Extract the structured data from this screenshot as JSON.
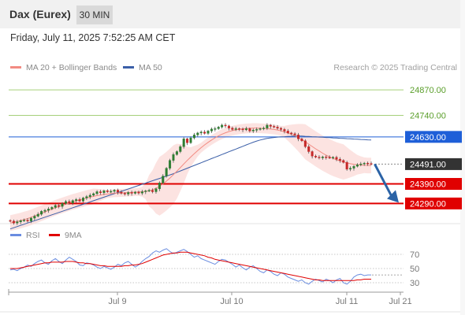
{
  "header": {
    "instrument": "Dax (Eurex)",
    "interval": "30 MIN"
  },
  "datetime": "Friday, July 11, 2025 7:52:25 AM CET",
  "legend": {
    "ma20_label": "MA 20 + Bollinger Bands",
    "ma50_label": "MA 50",
    "rsi_label": "RSI",
    "rsi_ma_label": "9MA"
  },
  "copyright": "Research © 2025 Trading Central",
  "colors": {
    "ma20": "#f28b82",
    "bollinger_band": "#fbd9d7",
    "ma50": "#3b5fa8",
    "resistance_green": "#a6d07a",
    "pivot_blue": "#1e5fd8",
    "support_red": "#e00000",
    "last_price": "#333333",
    "rsi": "#6a8de0",
    "rsi_ma": "#e00000",
    "arrow": "#2b63a6",
    "candle_up": "#2e7d32",
    "candle_down": "#c62828"
  },
  "chart_data": {
    "type": "candlestick",
    "ylim": [
      24195,
      24935
    ],
    "x_ticks": [
      "Jul 9",
      "Jul 10",
      "Jul 11",
      "Jul 21"
    ],
    "levels": [
      {
        "value": 24870.0,
        "label": "24870.00",
        "kind": "resistance"
      },
      {
        "value": 24740.0,
        "label": "24740.00",
        "kind": "resistance"
      },
      {
        "value": 24630.0,
        "label": "24630.00",
        "kind": "pivot"
      },
      {
        "value": 24491.0,
        "label": "24491.00",
        "kind": "last"
      },
      {
        "value": 24390.0,
        "label": "24390.00",
        "kind": "support"
      },
      {
        "value": 24290.0,
        "label": "24290.00",
        "kind": "support"
      }
    ],
    "close": [
      24200,
      24190,
      24196,
      24202,
      24205,
      24200,
      24215,
      24225,
      24235,
      24250,
      24255,
      24262,
      24270,
      24280,
      24275,
      24290,
      24300,
      24292,
      24305,
      24310,
      24302,
      24318,
      24325,
      24332,
      24340,
      24350,
      24345,
      24355,
      24350,
      24352,
      24358,
      24348,
      24342,
      24338,
      24346,
      24342,
      24348,
      24343,
      24350,
      24354,
      24357,
      24350,
      24365,
      24395,
      24430,
      24470,
      24510,
      24540,
      24555,
      24580,
      24620,
      24600,
      24625,
      24640,
      24650,
      24655,
      24648,
      24660,
      24670,
      24672,
      24680,
      24690,
      24686,
      24675,
      24668,
      24672,
      24670,
      24666,
      24672,
      24660,
      24665,
      24668,
      24672,
      24675,
      24690,
      24684,
      24680,
      24674,
      24668,
      24660,
      24650,
      24646,
      24640,
      24620,
      24610,
      24580,
      24555,
      24532,
      24527,
      24523,
      24528,
      24526,
      24523,
      24526,
      24516,
      24510,
      24500,
      24465,
      24470,
      24480,
      24488,
      24492,
      24496,
      24494,
      24491
    ],
    "ma20": [
      24190,
      24194,
      24198,
      24203,
      24208,
      24213,
      24219,
      24226,
      24233,
      24240,
      24247,
      24254,
      24261,
      24268,
      24274,
      24280,
      24286,
      24292,
      24298,
      24303,
      24308,
      24313,
      24318,
      24322,
      24326,
      24330,
      24333,
      24336,
      24338,
      24340,
      24342,
      24343,
      24344,
      24345,
      24346,
      24347,
      24348,
      24349,
      24350,
      24352,
      24355,
      24360,
      24368,
      24378,
      24390,
      24404,
      24420,
      24437,
      24455,
      24473,
      24492,
      24510,
      24527,
      24544,
      24560,
      24575,
      24589,
      24602,
      24614,
      24625,
      24635,
      24644,
      24651,
      24657,
      24662,
      24666,
      24669,
      24671,
      24673,
      24674,
      24675,
      24675,
      24674,
      24673,
      24672,
      24670,
      24668,
      24665,
      24661,
      24656,
      24650,
      24643,
      24635,
      24626,
      24616,
      24605,
      24593,
      24581,
      24569,
      24558,
      24547,
      24537,
      24528,
      24520,
      24513,
      24507,
      24502,
      24497,
      24493,
      24490,
      24488,
      24486,
      24485,
      24484,
      24484
    ],
    "ma50": [
      24160,
      24166,
      24172,
      24178,
      24184,
      24190,
      24196,
      24202,
      24208,
      24214,
      24220,
      24226,
      24232,
      24238,
      24244,
      24250,
      24256,
      24262,
      24268,
      24274,
      24280,
      24286,
      24292,
      24298,
      24304,
      24310,
      24316,
      24322,
      24328,
      24334,
      24340,
      24346,
      24352,
      24358,
      24364,
      24370,
      24376,
      24382,
      24388,
      24394,
      24400,
      24406,
      24412,
      24418,
      24424,
      24430,
      24436,
      24442,
      24449,
      24456,
      24463,
      24470,
      24477,
      24484,
      24491,
      24498,
      24505,
      24512,
      24519,
      24526,
      24533,
      24540,
      24547,
      24554,
      24561,
      24568,
      24575,
      24582,
      24589,
      24596,
      24603,
      24609,
      24614,
      24618,
      24622,
      24625,
      24627,
      24629,
      24630,
      24631,
      24632,
      24633,
      24634,
      24634,
      24634,
      24633,
      24632,
      24631,
      24630,
      24629,
      24628,
      24627,
      24626,
      24625,
      24624,
      24623,
      24622,
      24621,
      24620,
      24619,
      24618,
      24617,
      24616,
      24615,
      24614
    ],
    "band_half_width": [
      40,
      40,
      40,
      40,
      40,
      40,
      40,
      40,
      40,
      40,
      40,
      40,
      40,
      40,
      40,
      40,
      40,
      40,
      40,
      40,
      40,
      40,
      40,
      40,
      40,
      35,
      30,
      25,
      20,
      20,
      20,
      20,
      20,
      20,
      20,
      20,
      20,
      20,
      25,
      40,
      80,
      100,
      130,
      150,
      150,
      150,
      150,
      150,
      140,
      120,
      100,
      70,
      50,
      40,
      30,
      25,
      25,
      25,
      25,
      25,
      25,
      25,
      25,
      25,
      25,
      25,
      25,
      25,
      25,
      25,
      25,
      25,
      25,
      25,
      25,
      25,
      25,
      25,
      25,
      30,
      40,
      50,
      60,
      70,
      80,
      90,
      90,
      90,
      90,
      90,
      90,
      90,
      90,
      90,
      90,
      90,
      90,
      80,
      70,
      60,
      50,
      45,
      40,
      40,
      40
    ],
    "rsi": {
      "ticks": [
        70,
        50,
        30
      ],
      "ylim": [
        20,
        80
      ],
      "rsi": [
        48,
        49,
        47,
        50,
        52,
        55,
        53,
        57,
        60,
        62,
        58,
        56,
        61,
        64,
        60,
        57,
        62,
        66,
        63,
        60,
        55,
        54,
        58,
        57,
        55,
        52,
        50,
        53,
        51,
        49,
        52,
        56,
        54,
        58,
        60,
        56,
        52,
        55,
        60,
        64,
        67,
        72,
        75,
        73,
        76,
        78,
        74,
        71,
        73,
        75,
        77,
        74,
        70,
        66,
        68,
        64,
        62,
        60,
        58,
        56,
        60,
        63,
        62,
        59,
        56,
        52,
        55,
        51,
        48,
        52,
        54,
        50,
        46,
        44,
        48,
        46,
        42,
        40,
        44,
        42,
        38,
        36,
        34,
        32,
        34,
        30,
        28,
        32,
        35,
        33,
        31,
        35,
        33,
        30,
        34,
        36,
        30,
        28,
        32,
        38,
        41,
        42,
        40,
        41,
        41
      ],
      "ma9": [
        50,
        50,
        50,
        51,
        52,
        53,
        54,
        55,
        56,
        57,
        58,
        58,
        59,
        59,
        59,
        59,
        60,
        60,
        60,
        59,
        58,
        58,
        57,
        57,
        56,
        55,
        54,
        54,
        53,
        53,
        53,
        53,
        53,
        54,
        54,
        55,
        55,
        56,
        57,
        59,
        61,
        63,
        65,
        67,
        69,
        70,
        71,
        72,
        72,
        73,
        73,
        73,
        72,
        71,
        70,
        69,
        68,
        66,
        65,
        63,
        62,
        61,
        60,
        59,
        58,
        57,
        56,
        55,
        54,
        53,
        52,
        51,
        50,
        49,
        48,
        47,
        46,
        45,
        44,
        43,
        42,
        41,
        40,
        39,
        38,
        37,
        36,
        35,
        34,
        34,
        33,
        33,
        33,
        33,
        33,
        33,
        33,
        33,
        33,
        33,
        34,
        34,
        35,
        35,
        35
      ]
    }
  }
}
